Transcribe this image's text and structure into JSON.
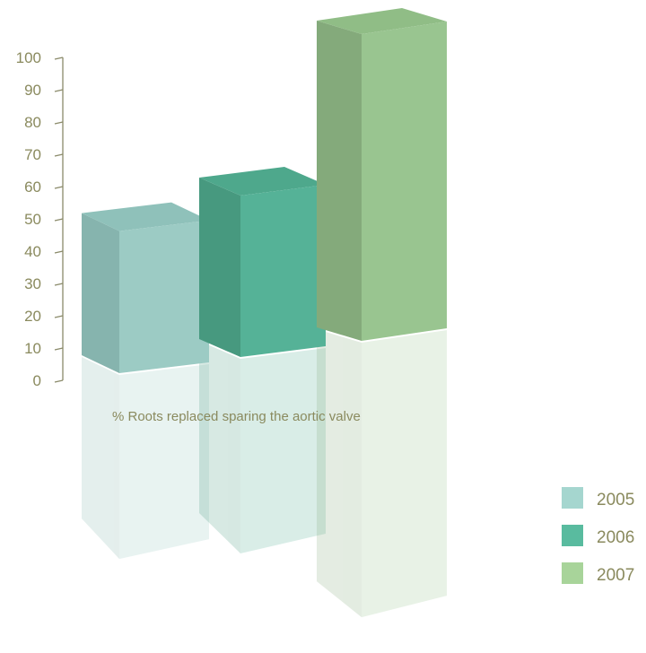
{
  "chart_data": {
    "type": "bar",
    "caption": "% Roots replaced sparing the aortic valve",
    "categories": [
      "2005",
      "2006",
      "2007"
    ],
    "series": [
      {
        "name": "2005",
        "value": 44,
        "colors": {
          "front": "#9ccbc4",
          "side": "#86b4ae",
          "top": "#8fc1ba"
        }
      },
      {
        "name": "2006",
        "value": 50,
        "colors": {
          "front": "#55b297",
          "side": "#47997f",
          "top": "#4ea88c"
        }
      },
      {
        "name": "2007",
        "value": 95,
        "colors": {
          "front": "#99c590",
          "side": "#84aa7b",
          "top": "#90bd86"
        }
      }
    ],
    "ylim": [
      0,
      100
    ],
    "yticks": [
      "0",
      "10",
      "20",
      "30",
      "40",
      "50",
      "60",
      "70",
      "80",
      "90",
      "100"
    ],
    "legend": [
      {
        "label": "2005",
        "color": "#a5d6cf"
      },
      {
        "label": "2006",
        "color": "#59bb9f"
      },
      {
        "label": "2007",
        "color": "#a8d49a"
      }
    ],
    "legend_position": "bottom-right",
    "axis_color": "#8a8a6a",
    "text_color": "#8a8a5e"
  }
}
